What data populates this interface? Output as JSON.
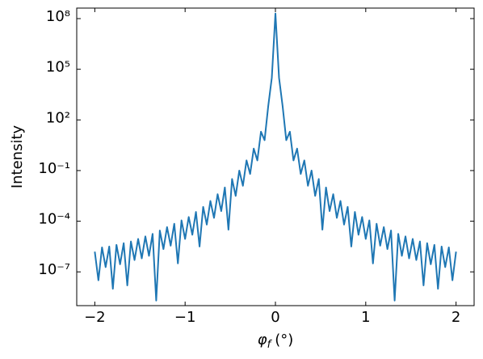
{
  "chart_data": {
    "type": "line",
    "ylabel": "Intensity",
    "xlabel": {
      "symbol": "φ",
      "subscript": "f",
      "unit": "(°)"
    },
    "ylog": true,
    "color": "#1f77b4",
    "xlim": [
      -2.2,
      2.2
    ],
    "xticks": [
      {
        "value": -2,
        "label": "−2"
      },
      {
        "value": -1,
        "label": "−1"
      },
      0,
      1,
      2
    ],
    "ylim": [
      1e-09,
      420000000
    ],
    "yticks": [
      {
        "value": 1e-07,
        "label": "10⁻⁷"
      },
      {
        "value": 0.0001,
        "label": "10⁻⁴"
      },
      {
        "value": 0.1,
        "label": "10⁻¹"
      },
      {
        "value": 100,
        "label": "10²"
      },
      {
        "value": 100000,
        "label": "10⁵"
      },
      {
        "value": 100000000,
        "label": "10⁸"
      }
    ],
    "x": [
      -2,
      -1.96,
      -1.92,
      -1.88,
      -1.84,
      -1.8,
      -1.76,
      -1.72,
      -1.68,
      -1.64,
      -1.6,
      -1.56,
      -1.52,
      -1.48,
      -1.44,
      -1.4,
      -1.36,
      -1.32,
      -1.28,
      -1.24,
      -1.2,
      -1.16,
      -1.12,
      -1.08,
      -1.04,
      -1,
      -0.96,
      -0.92,
      -0.88,
      -0.84,
      -0.8,
      -0.76,
      -0.72,
      -0.68,
      -0.64,
      -0.6,
      -0.56,
      -0.52,
      -0.48,
      -0.44,
      -0.4,
      -0.36,
      -0.32,
      -0.28,
      -0.24,
      -0.2,
      -0.16,
      -0.12,
      -0.08,
      -0.04,
      0,
      0.04,
      0.08,
      0.12,
      0.16,
      0.2,
      0.24,
      0.28,
      0.32,
      0.36,
      0.4,
      0.44,
      0.48,
      0.52,
      0.56,
      0.6,
      0.64,
      0.68,
      0.72,
      0.76,
      0.8,
      0.84,
      0.88,
      0.92,
      0.96,
      1,
      1.04,
      1.08,
      1.12,
      1.16,
      1.2,
      1.24,
      1.28,
      1.32,
      1.36,
      1.4,
      1.44,
      1.48,
      1.52,
      1.56,
      1.6,
      1.64,
      1.68,
      1.72,
      1.76,
      1.8,
      1.84,
      1.88,
      1.92,
      1.96,
      2
    ],
    "values": [
      1.58e-06,
      3.16e-08,
      2.82e-06,
      1.91e-07,
      3.16e-06,
      1e-08,
      3.98e-06,
      2.82e-07,
      5.01e-06,
      1.58e-08,
      6.31e-06,
      5.01e-07,
      8.91e-06,
      6.31e-07,
      1.26e-05,
      8.91e-07,
      1.78e-05,
      2e-09,
      2.82e-05,
      2.24e-06,
      4.47e-05,
      3.55e-06,
      7.08e-05,
      3.16e-07,
      0.000112,
      8.91e-06,
      0.000178,
      1.58e-05,
      0.000355,
      3.16e-06,
      0.000708,
      6.31e-05,
      0.00158,
      0.000158,
      0.00398,
      0.000398,
      0.01,
      3.16e-05,
      0.0316,
      0.00316,
      0.1,
      0.0126,
      0.398,
      0.0631,
      2,
      0.398,
      20,
      6.31,
      631,
      31600.0,
      200000000.0,
      31600.0,
      631,
      6.31,
      20,
      0.398,
      2,
      0.0631,
      0.398,
      0.0126,
      0.1,
      0.00316,
      0.0316,
      3.16e-05,
      0.01,
      0.000398,
      0.00398,
      0.000158,
      0.00158,
      6.31e-05,
      0.000708,
      3.16e-06,
      0.000355,
      1.58e-05,
      0.000178,
      8.91e-06,
      0.000112,
      3.16e-07,
      7.08e-05,
      3.55e-06,
      4.47e-05,
      2.24e-06,
      2.82e-05,
      2e-09,
      1.78e-05,
      8.91e-07,
      1.26e-05,
      6.31e-07,
      8.91e-06,
      5.01e-07,
      6.31e-06,
      1.58e-08,
      5.01e-06,
      2.82e-07,
      3.98e-06,
      1e-08,
      3.16e-06,
      1.91e-07,
      2.82e-06,
      3.16e-08,
      1.58e-06
    ]
  }
}
